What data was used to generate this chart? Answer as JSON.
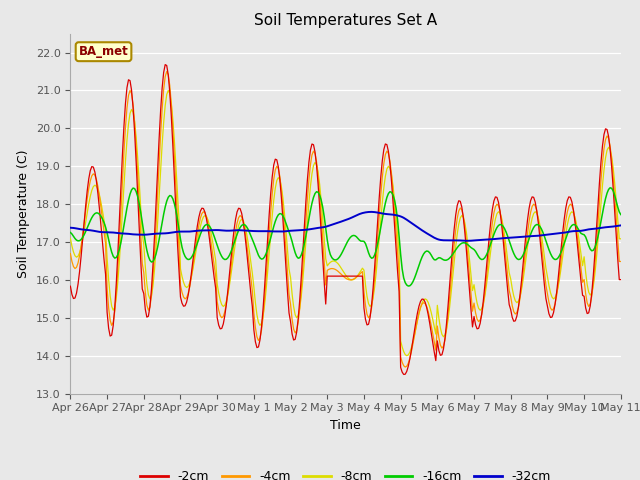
{
  "title": "Soil Temperatures Set A",
  "xlabel": "Time",
  "ylabel": "Soil Temperature (C)",
  "ylim": [
    13.0,
    22.5
  ],
  "yticks": [
    13.0,
    14.0,
    15.0,
    16.0,
    17.0,
    18.0,
    19.0,
    20.0,
    21.0,
    22.0
  ],
  "annotation": "BA_met",
  "bg_color": "#e8e8e8",
  "series_colors": {
    "-2cm": "#dd0000",
    "-4cm": "#ff9900",
    "-8cm": "#dddd00",
    "-16cm": "#00cc00",
    "-32cm": "#0000cc"
  },
  "x_labels": [
    "Apr 26",
    "Apr 27",
    "Apr 28",
    "Apr 29",
    "Apr 30",
    "May 1",
    "May 2",
    "May 3",
    "May 4",
    "May 5",
    "May 6",
    "May 7",
    "May 8",
    "May 9",
    "May 10",
    "May 11"
  ],
  "legend_labels": [
    "-2cm",
    "-4cm",
    "-8cm",
    "-16cm",
    "-32cm"
  ]
}
